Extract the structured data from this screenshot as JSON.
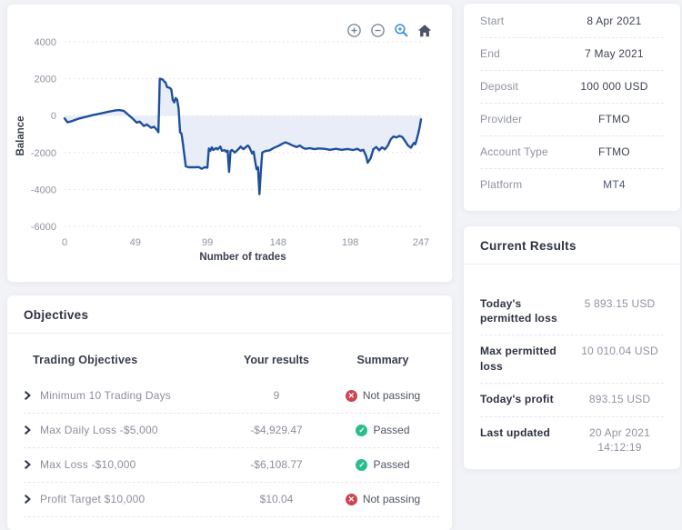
{
  "chart_data": {
    "type": "area",
    "title": "",
    "xlabel": "Number of trades",
    "ylabel": "Balance",
    "xlim": [
      0,
      247
    ],
    "ylim": [
      -6000,
      4000
    ],
    "xticks": [
      0,
      49,
      99,
      148,
      198,
      247
    ],
    "yticks": [
      4000,
      2000,
      0,
      -2000,
      -4000,
      -6000
    ],
    "grid": "horizontal-dotted",
    "legend": "none",
    "line_color": "#1e4f9e",
    "fill_color": "#e8edf7",
    "toolbar_icons": [
      "zoom-in",
      "zoom-out",
      "selection-zoom",
      "reset-home"
    ],
    "points": [
      [
        0,
        -150
      ],
      [
        2,
        -360
      ],
      [
        5,
        -300
      ],
      [
        10,
        -160
      ],
      [
        15,
        -60
      ],
      [
        20,
        40
      ],
      [
        25,
        120
      ],
      [
        30,
        200
      ],
      [
        35,
        280
      ],
      [
        38,
        300
      ],
      [
        41,
        260
      ],
      [
        44,
        60
      ],
      [
        47,
        -150
      ],
      [
        50,
        -380
      ],
      [
        52,
        -320
      ],
      [
        55,
        -560
      ],
      [
        57,
        -480
      ],
      [
        60,
        -660
      ],
      [
        62,
        -600
      ],
      [
        64,
        -780
      ],
      [
        65,
        -900
      ],
      [
        66,
        2000
      ],
      [
        68,
        1960
      ],
      [
        69,
        1850
      ],
      [
        70,
        1800
      ],
      [
        71,
        1550
      ],
      [
        73,
        1500
      ],
      [
        74,
        1420
      ],
      [
        75,
        850
      ],
      [
        76,
        720
      ],
      [
        77,
        950
      ],
      [
        78,
        860
      ],
      [
        79,
        400
      ],
      [
        80,
        -900
      ],
      [
        81,
        -980
      ],
      [
        82,
        -1500
      ],
      [
        84,
        -2750
      ],
      [
        86,
        -2800
      ],
      [
        90,
        -2800
      ],
      [
        93,
        -2790
      ],
      [
        95,
        -2880
      ],
      [
        97,
        -2800
      ],
      [
        99,
        -2820
      ],
      [
        100,
        -1780
      ],
      [
        101,
        -1900
      ],
      [
        102,
        -1720
      ],
      [
        103,
        -1860
      ],
      [
        105,
        -1760
      ],
      [
        106,
        -1830
      ],
      [
        108,
        -1680
      ],
      [
        109,
        -1900
      ],
      [
        111,
        -1870
      ],
      [
        112,
        -1950
      ],
      [
        113,
        -1900
      ],
      [
        114,
        -3050
      ],
      [
        115,
        -1920
      ],
      [
        116,
        -1860
      ],
      [
        118,
        -2000
      ],
      [
        119,
        -1920
      ],
      [
        121,
        -1780
      ],
      [
        122,
        -1680
      ],
      [
        124,
        -1820
      ],
      [
        125,
        -1750
      ],
      [
        127,
        -1620
      ],
      [
        128,
        -1700
      ],
      [
        130,
        -2050
      ],
      [
        131,
        -1950
      ],
      [
        132,
        -2450
      ],
      [
        133,
        -2900
      ],
      [
        134,
        -2800
      ],
      [
        135,
        -4250
      ],
      [
        136,
        -3050
      ],
      [
        137,
        -2000
      ],
      [
        139,
        -1920
      ],
      [
        142,
        -1880
      ],
      [
        145,
        -1750
      ],
      [
        148,
        -1650
      ],
      [
        151,
        -1520
      ],
      [
        153,
        -1450
      ],
      [
        155,
        -1500
      ],
      [
        157,
        -1580
      ],
      [
        159,
        -1650
      ],
      [
        161,
        -1700
      ],
      [
        163,
        -1620
      ],
      [
        165,
        -1740
      ],
      [
        167,
        -1800
      ],
      [
        170,
        -1760
      ],
      [
        173,
        -1820
      ],
      [
        176,
        -1780
      ],
      [
        180,
        -1800
      ],
      [
        184,
        -1850
      ],
      [
        188,
        -1800
      ],
      [
        192,
        -1850
      ],
      [
        196,
        -1810
      ],
      [
        200,
        -1860
      ],
      [
        203,
        -1800
      ],
      [
        205,
        -1900
      ],
      [
        207,
        -1850
      ],
      [
        209,
        -2200
      ],
      [
        210,
        -2550
      ],
      [
        212,
        -2320
      ],
      [
        214,
        -1820
      ],
      [
        216,
        -1700
      ],
      [
        218,
        -1880
      ],
      [
        220,
        -1720
      ],
      [
        222,
        -1830
      ],
      [
        224,
        -1620
      ],
      [
        226,
        -1280
      ],
      [
        228,
        -1130
      ],
      [
        230,
        -1180
      ],
      [
        232,
        -1100
      ],
      [
        234,
        -1160
      ],
      [
        236,
        -1380
      ],
      [
        238,
        -1620
      ],
      [
        240,
        -1740
      ],
      [
        242,
        -1480
      ],
      [
        243,
        -1550
      ],
      [
        244,
        -1300
      ],
      [
        245,
        -1000
      ],
      [
        246,
        -650
      ],
      [
        247,
        -200
      ]
    ]
  },
  "account": {
    "rows": [
      {
        "label": "Start",
        "value": "8 Apr 2021"
      },
      {
        "label": "End",
        "value": "7 May 2021"
      },
      {
        "label": "Deposit",
        "value": "100 000 USD"
      },
      {
        "label": "Provider",
        "value": "FTMO"
      },
      {
        "label": "Account Type",
        "value": "FTMO"
      },
      {
        "label": "Platform",
        "value": "MT4"
      }
    ]
  },
  "results": {
    "title": "Current Results",
    "rows": [
      {
        "label": "Today's permitted loss",
        "value": "5 893.15 USD"
      },
      {
        "label": "Max permitted loss",
        "value": "10 010.04 USD"
      },
      {
        "label": "Today's profit",
        "value": "893.15 USD"
      },
      {
        "label": "Last updated",
        "value": "20 Apr 2021\n14:12:19"
      }
    ]
  },
  "objectives": {
    "title": "Objectives",
    "headers": {
      "objective": "Trading Objectives",
      "results": "Your results",
      "summary": "Summary"
    },
    "rows": [
      {
        "label": "Minimum 10 Trading Days",
        "result": "9",
        "status": {
          "label": "Not passing",
          "icon": "✕",
          "state": "fail"
        }
      },
      {
        "label": "Max Daily Loss -$5,000",
        "result": "-$4,929.47",
        "status": {
          "label": "Passed",
          "icon": "✓",
          "state": "pass"
        }
      },
      {
        "label": "Max Loss -$10,000",
        "result": "-$6,108.77",
        "status": {
          "label": "Passed",
          "icon": "✓",
          "state": "pass"
        }
      },
      {
        "label": "Profit Target $10,000",
        "result": "$10.04",
        "status": {
          "label": "Not passing",
          "icon": "✕",
          "state": "fail"
        }
      }
    ]
  }
}
